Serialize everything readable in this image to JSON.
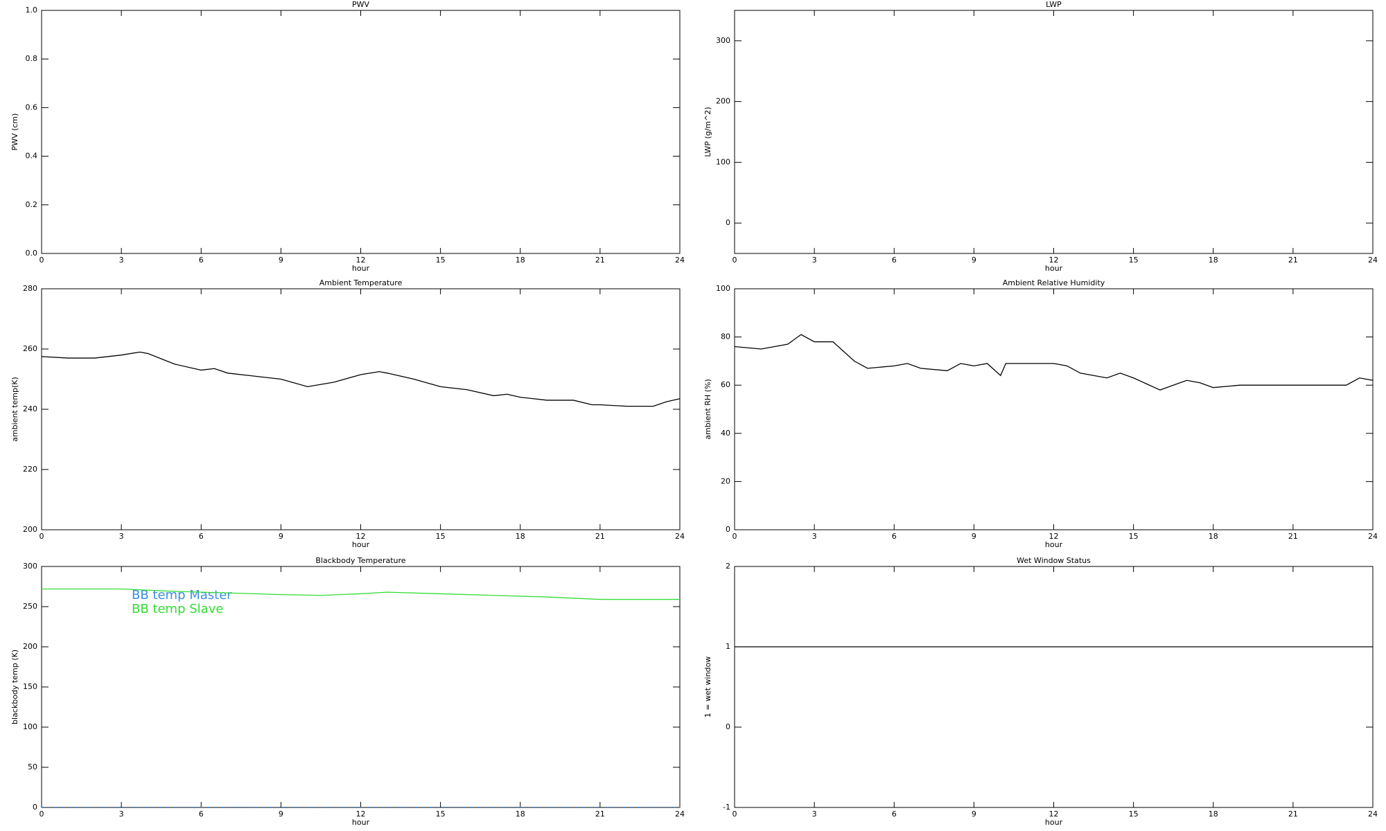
{
  "chart_data": [
    {
      "type": "line",
      "title": "PWV",
      "xlabel": "hour",
      "ylabel": "PWV (cm)",
      "xlim": [
        0,
        24
      ],
      "xticks": [
        0,
        3,
        6,
        9,
        12,
        15,
        18,
        21,
        24
      ],
      "ylim": [
        0,
        1
      ],
      "yticks": [
        {
          "value": 0,
          "label": "0.0"
        },
        0.2,
        0.4,
        0.6,
        0.8,
        {
          "value": 1,
          "label": "1.0"
        }
      ]
    },
    {
      "type": "line",
      "title": "LWP",
      "xlabel": "hour",
      "ylabel": "LWP (g/m^2)",
      "xlim": [
        0,
        24
      ],
      "xticks": [
        0,
        3,
        6,
        9,
        12,
        15,
        18,
        21,
        24
      ],
      "ylim": [
        -50,
        350
      ],
      "yticks": [
        0,
        100,
        200,
        300
      ]
    },
    {
      "type": "line",
      "title": "Ambient Temperature",
      "xlabel": "hour",
      "ylabel": "ambient temp(K)",
      "xlim": [
        0,
        24
      ],
      "xticks": [
        0,
        3,
        6,
        9,
        12,
        15,
        18,
        21,
        24
      ],
      "ylim": [
        200,
        280
      ],
      "yticks": [
        200,
        220,
        240,
        260,
        280
      ],
      "x": [
        0,
        1,
        2,
        3,
        3.7,
        4,
        5,
        6,
        6.5,
        7,
        8,
        9,
        10,
        11,
        12,
        12.7,
        13,
        14,
        15,
        16,
        17,
        17.5,
        18,
        19,
        20,
        20.7,
        21,
        22,
        23,
        23.5,
        24
      ],
      "series": [
        {
          "color": "#000000",
          "values": [
            257.5,
            257,
            257,
            258,
            259,
            258.5,
            255,
            253,
            253.5,
            252,
            251,
            250,
            247.5,
            249,
            251.5,
            252.5,
            252,
            250,
            247.5,
            246.5,
            244.5,
            245,
            244,
            243,
            243,
            241.5,
            241.5,
            241,
            241,
            242.5,
            243.5
          ]
        }
      ]
    },
    {
      "type": "line",
      "title": "Ambient Relative Humidity",
      "xlabel": "hour",
      "ylabel": "ambient RH (%)",
      "xlim": [
        0,
        24
      ],
      "xticks": [
        0,
        3,
        6,
        9,
        12,
        15,
        18,
        21,
        24
      ],
      "ylim": [
        0,
        100
      ],
      "yticks": [
        0,
        20,
        40,
        60,
        80,
        100
      ],
      "x": [
        0,
        1,
        2,
        2.5,
        3,
        3.7,
        4.5,
        5,
        6,
        6.5,
        7,
        8,
        8.5,
        9,
        9.5,
        10,
        10.2,
        11,
        12,
        12.5,
        13,
        14,
        14.5,
        15,
        16,
        17,
        17.5,
        18,
        19,
        20,
        21,
        22,
        23,
        23.5,
        24
      ],
      "series": [
        {
          "color": "#000000",
          "values": [
            76,
            75,
            77,
            81,
            78,
            78,
            70,
            67,
            68,
            69,
            67,
            66,
            69,
            68,
            69,
            64,
            69,
            69,
            69,
            68,
            65,
            63,
            65,
            63,
            58,
            62,
            61,
            59,
            60,
            60,
            60,
            60,
            60,
            63,
            62
          ]
        }
      ]
    },
    {
      "type": "line",
      "title": "Blackbody Temperature",
      "xlabel": "hour",
      "ylabel": "blackbody temp (K)",
      "xlim": [
        0,
        24
      ],
      "xticks": [
        0,
        3,
        6,
        9,
        12,
        15,
        18,
        21,
        24
      ],
      "ylim": [
        0,
        300
      ],
      "yticks": [
        0,
        50,
        100,
        150,
        200,
        250,
        300
      ],
      "x": [
        0,
        3,
        5,
        7,
        9,
        10.5,
        12,
        13,
        15,
        17,
        19,
        21,
        23,
        24
      ],
      "series": [
        {
          "name": "BB temp Master",
          "color": "#3a8ee6",
          "dashed": true,
          "values": [
            0,
            0,
            0,
            0,
            0,
            0,
            0,
            0,
            0,
            0,
            0,
            0,
            0,
            0
          ]
        },
        {
          "name": "BB temp Slave",
          "color": "#33dd33",
          "values": [
            272,
            272,
            269,
            267,
            265,
            264,
            266,
            268,
            266,
            264,
            262,
            259,
            259,
            259
          ]
        }
      ]
    },
    {
      "type": "line",
      "title": "Wet Window Status",
      "xlabel": "hour",
      "ylabel": "1 = wet window",
      "xlim": [
        0,
        24
      ],
      "xticks": [
        0,
        3,
        6,
        9,
        12,
        15,
        18,
        21,
        24
      ],
      "ylim": [
        -1,
        2
      ],
      "yticks": [
        -1,
        0,
        1,
        2
      ],
      "x": [
        0,
        24
      ],
      "series": [
        {
          "color": "#000000",
          "values": [
            1,
            1
          ]
        }
      ]
    }
  ]
}
